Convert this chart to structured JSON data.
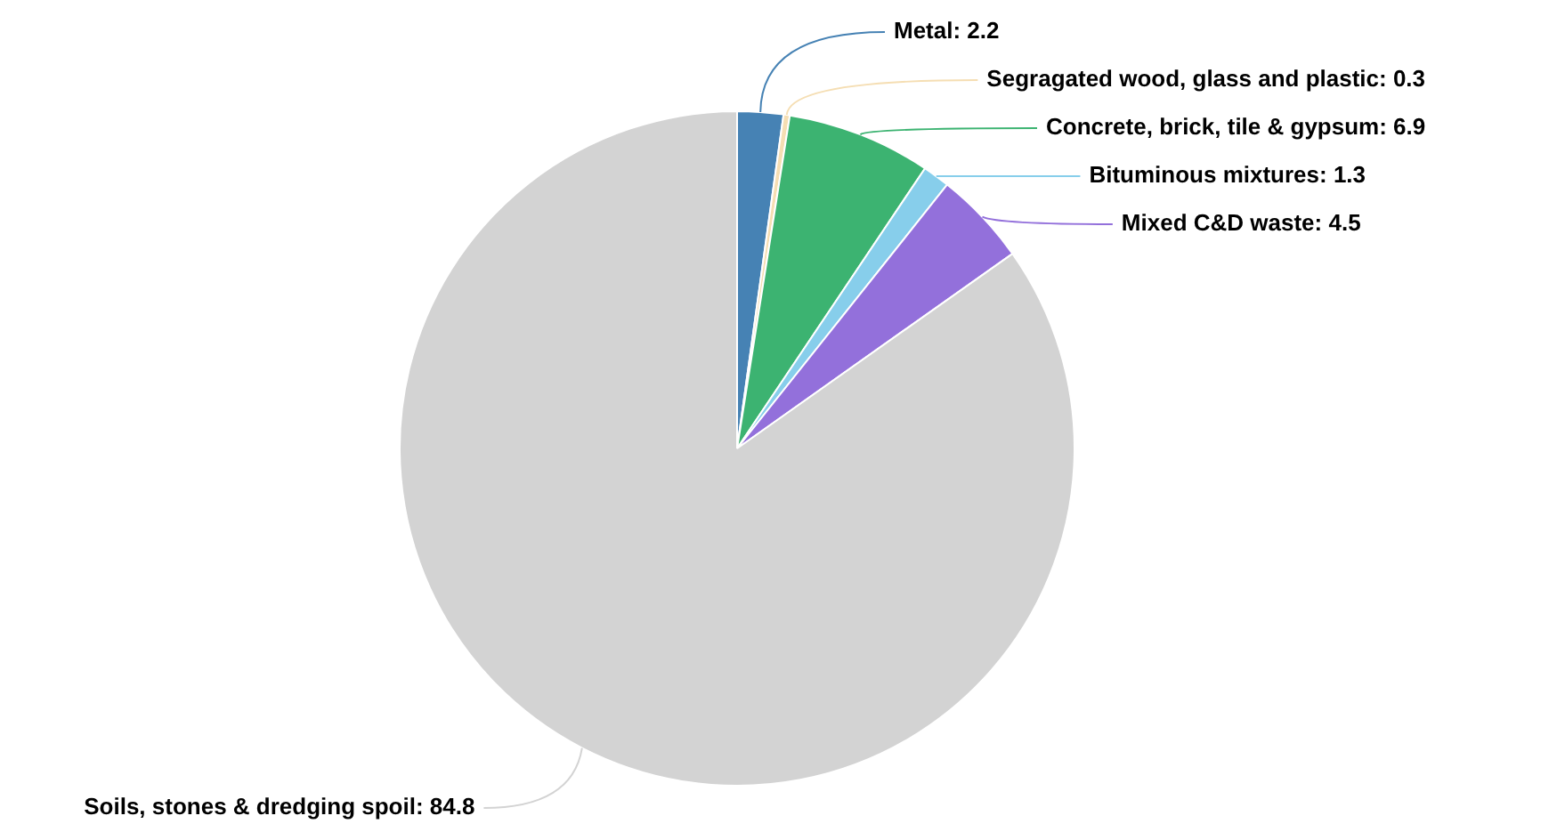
{
  "chart_data": {
    "type": "pie",
    "categories": [
      "Metal",
      "Segragated wood, glass and plastic",
      "Concrete, brick, tile & gypsum",
      "Bituminous mixtures",
      "Mixed C&D waste",
      "Soils, stones & dredging spoil"
    ],
    "values": [
      2.2,
      0.3,
      6.9,
      1.3,
      4.5,
      84.8
    ],
    "colors": [
      "#4682b4",
      "#f5deb3",
      "#3cb371",
      "#87ceeb",
      "#9370db",
      "#d3d3d3"
    ],
    "value_labels": [
      ": 2.2",
      ": 0.3",
      ": 6.9",
      ": 1.3",
      ": 4.5",
      ": 84.8"
    ],
    "legend": false
  }
}
